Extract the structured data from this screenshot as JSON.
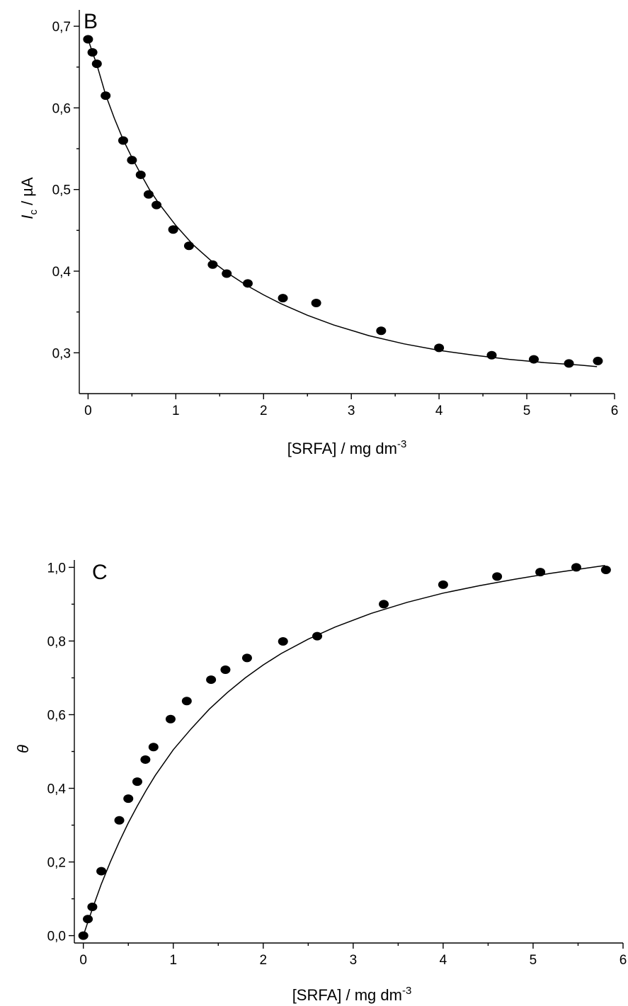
{
  "chart_data": [
    {
      "type": "scatter",
      "panel_label": "B",
      "xlabel": "[SRFA] / mg dm",
      "xlabel_sup": "-3",
      "ylabel_main": "I",
      "ylabel_sub": "c",
      "ylabel_rest": " / µA",
      "xlim": [
        -0.1,
        6.0
      ],
      "ylim": [
        0.25,
        0.72
      ],
      "xticks": [
        0,
        1,
        2,
        3,
        4,
        5,
        6
      ],
      "xtick_labels": [
        "0",
        "1",
        "2",
        "3",
        "4",
        "5",
        "6"
      ],
      "yticks": [
        0.3,
        0.4,
        0.5,
        0.6,
        0.7
      ],
      "ytick_labels": [
        "0,3",
        "0,4",
        "0,5",
        "0,6",
        "0,7"
      ],
      "points": {
        "x": [
          0.0,
          0.05,
          0.1,
          0.2,
          0.4,
          0.5,
          0.6,
          0.69,
          0.78,
          0.97,
          1.15,
          1.42,
          1.58,
          1.82,
          2.22,
          2.6,
          3.34,
          4.0,
          4.6,
          5.08,
          5.48,
          5.81
        ],
        "y": [
          0.684,
          0.668,
          0.654,
          0.615,
          0.56,
          0.536,
          0.518,
          0.494,
          0.481,
          0.451,
          0.431,
          0.408,
          0.397,
          0.385,
          0.367,
          0.361,
          0.327,
          0.306,
          0.297,
          0.292,
          0.287,
          0.29
        ]
      },
      "fit": {
        "x": [
          0,
          0.05,
          0.1,
          0.2,
          0.3,
          0.4,
          0.5,
          0.6,
          0.7,
          0.8,
          1.0,
          1.2,
          1.4,
          1.6,
          1.8,
          2.0,
          2.2,
          2.5,
          2.8,
          3.2,
          3.6,
          4.0,
          4.4,
          4.8,
          5.2,
          5.6,
          5.8
        ],
        "y": [
          0.684,
          0.668,
          0.653,
          0.616,
          0.587,
          0.561,
          0.539,
          0.519,
          0.5,
          0.484,
          0.456,
          0.432,
          0.413,
          0.397,
          0.383,
          0.371,
          0.36,
          0.346,
          0.334,
          0.321,
          0.311,
          0.303,
          0.297,
          0.292,
          0.288,
          0.285,
          0.283
        ]
      }
    },
    {
      "type": "scatter",
      "panel_label": "C",
      "xlabel": "[SRFA] / mg dm",
      "xlabel_sup": "-3",
      "ylabel_main": "θ",
      "xlim": [
        -0.1,
        6.0
      ],
      "ylim": [
        -0.02,
        1.02
      ],
      "xticks": [
        0,
        1,
        2,
        3,
        4,
        5,
        6
      ],
      "xtick_labels": [
        "0",
        "1",
        "2",
        "3",
        "4",
        "5",
        "6"
      ],
      "yticks": [
        0.0,
        0.2,
        0.4,
        0.6,
        0.8,
        1.0
      ],
      "ytick_labels": [
        "0,0",
        "0,2",
        "0,4",
        "0,6",
        "0,8",
        "1,0"
      ],
      "points": {
        "x": [
          0.0,
          0.05,
          0.1,
          0.2,
          0.4,
          0.5,
          0.6,
          0.69,
          0.78,
          0.97,
          1.15,
          1.42,
          1.58,
          1.82,
          2.22,
          2.6,
          3.34,
          4.0,
          4.6,
          5.08,
          5.48,
          5.81
        ],
        "y": [
          0.0,
          0.045,
          0.078,
          0.175,
          0.313,
          0.372,
          0.418,
          0.478,
          0.512,
          0.588,
          0.637,
          0.695,
          0.722,
          0.754,
          0.799,
          0.813,
          0.9,
          0.953,
          0.975,
          0.987,
          1.0,
          0.993
        ]
      },
      "fit": {
        "x": [
          0,
          0.05,
          0.1,
          0.2,
          0.3,
          0.4,
          0.5,
          0.6,
          0.7,
          0.8,
          1.0,
          1.2,
          1.4,
          1.6,
          1.8,
          2.0,
          2.2,
          2.5,
          2.8,
          3.2,
          3.6,
          4.0,
          4.4,
          4.8,
          5.2,
          5.6,
          5.8
        ],
        "y": [
          0.0,
          0.037,
          0.072,
          0.14,
          0.2,
          0.255,
          0.306,
          0.352,
          0.395,
          0.435,
          0.505,
          0.562,
          0.615,
          0.66,
          0.7,
          0.735,
          0.766,
          0.805,
          0.838,
          0.875,
          0.905,
          0.93,
          0.95,
          0.968,
          0.984,
          0.998,
          1.005
        ]
      }
    }
  ]
}
